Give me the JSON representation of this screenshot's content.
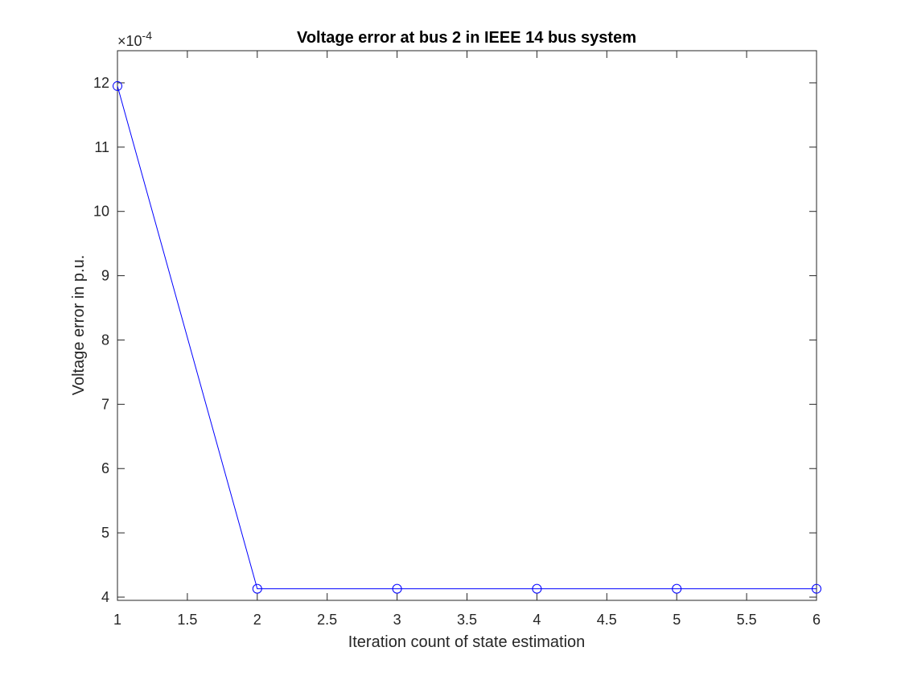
{
  "chart_data": {
    "type": "line",
    "title": "Voltage error at bus 2 in IEEE 14 bus system",
    "xlabel": "Iteration count of state estimation",
    "ylabel": "Voltage error in p.u.",
    "y_exponent_label": "×10",
    "y_exponent_value": "-4",
    "xlim": [
      1,
      6
    ],
    "ylim": [
      3.95,
      12.5
    ],
    "x_ticks": [
      1,
      1.5,
      2,
      2.5,
      3,
      3.5,
      4,
      4.5,
      5,
      5.5,
      6
    ],
    "x_tick_labels": [
      "1",
      "1.5",
      "2",
      "2.5",
      "3",
      "3.5",
      "4",
      "4.5",
      "5",
      "5.5",
      "6"
    ],
    "y_ticks": [
      4,
      5,
      6,
      7,
      8,
      9,
      10,
      11,
      12
    ],
    "y_tick_labels": [
      "4",
      "5",
      "6",
      "7",
      "8",
      "9",
      "10",
      "11",
      "12"
    ],
    "grid": false,
    "series": [
      {
        "color": "#0000ff",
        "marker": "circle",
        "x": [
          1,
          2,
          3,
          4,
          5,
          6
        ],
        "y": [
          11.95,
          4.13,
          4.13,
          4.13,
          4.13,
          4.13
        ]
      }
    ]
  }
}
